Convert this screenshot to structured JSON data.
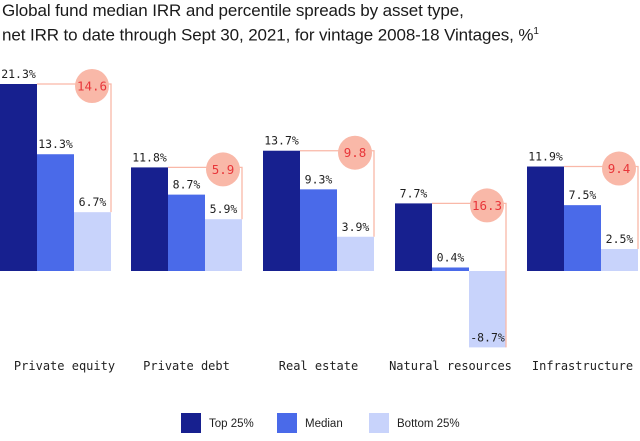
{
  "title_line1": "Global fund median IRR and percentile spreads by asset type,",
  "title_line2": "net IRR to date through Sept 30, 2021, for vintage 2008-18 Vintages, %",
  "title_footnote": "1",
  "chart_data": {
    "type": "bar",
    "categories": [
      "Private equity",
      "Private debt",
      "Real estate",
      "Natural resources",
      "Infrastructure"
    ],
    "series": [
      {
        "name": "Top 25%",
        "values": [
          21.3,
          11.8,
          13.7,
          7.7,
          11.9
        ],
        "labels": [
          "21.3%",
          "11.8%",
          "13.7%",
          "7.7%",
          "11.9%"
        ],
        "color": "#17208f"
      },
      {
        "name": "Median",
        "values": [
          13.3,
          8.7,
          9.3,
          0.4,
          7.5
        ],
        "labels": [
          "13.3%",
          "8.7%",
          "9.3%",
          "0.4%",
          "7.5%"
        ],
        "color": "#4a6ae9"
      },
      {
        "name": "Bottom 25%",
        "values": [
          6.7,
          5.9,
          3.9,
          -8.7,
          2.5
        ],
        "labels": [
          "6.7%",
          "5.9%",
          "3.9%",
          "-8.7%",
          "2.5%"
        ],
        "color": "#c8d3fb"
      }
    ],
    "spreads": [
      14.6,
      5.9,
      9.8,
      16.3,
      9.4
    ],
    "spread_labels": [
      "14.6",
      "5.9",
      "9.8",
      "16.3",
      "9.4"
    ],
    "spread_color": "#f9b8a8",
    "spread_text_color": "#e8363a",
    "ylim": [
      -8.7,
      21.3
    ],
    "legend_position": "bottom"
  }
}
